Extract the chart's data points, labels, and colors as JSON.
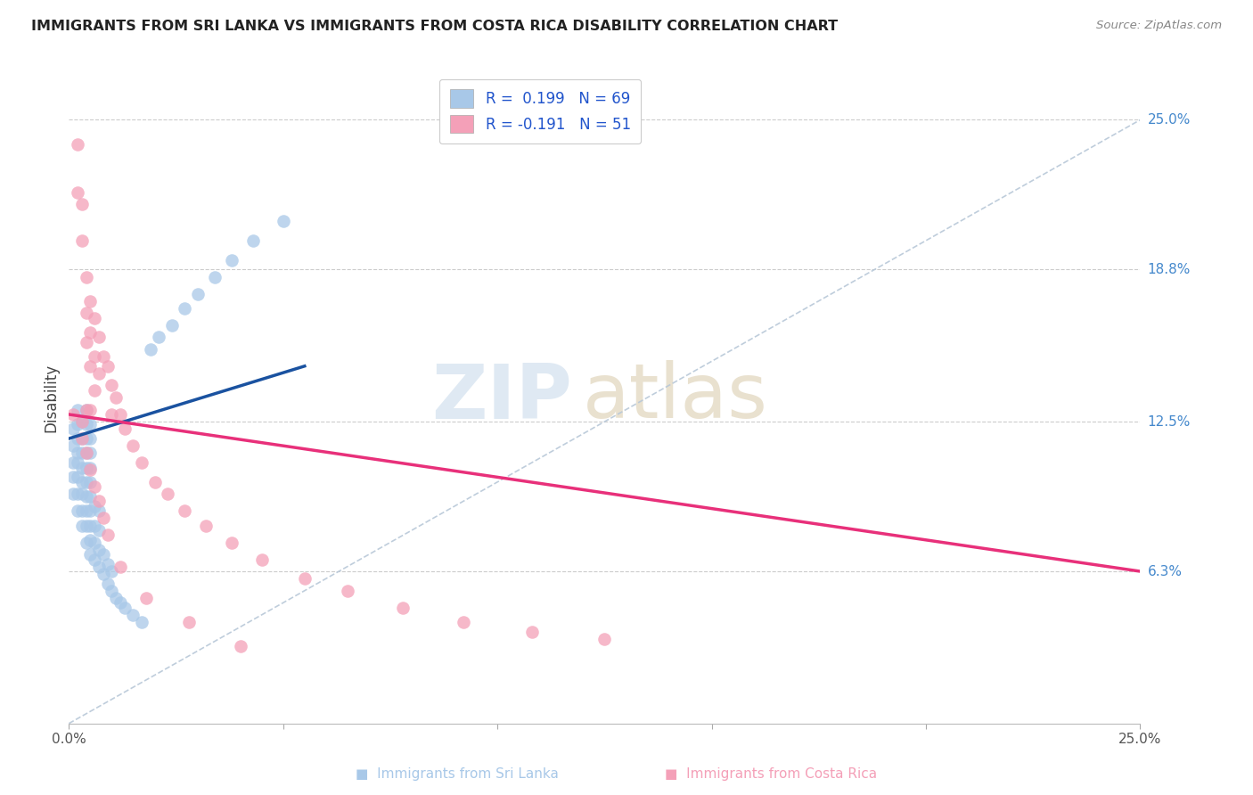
{
  "title": "IMMIGRANTS FROM SRI LANKA VS IMMIGRANTS FROM COSTA RICA DISABILITY CORRELATION CHART",
  "source": "Source: ZipAtlas.com",
  "ylabel": "Disability",
  "xlim": [
    0.0,
    0.25
  ],
  "ylim": [
    0.0,
    0.27
  ],
  "ytick_vals": [
    0.063,
    0.125,
    0.188,
    0.25
  ],
  "ytick_labels": [
    "6.3%",
    "12.5%",
    "18.8%",
    "25.0%"
  ],
  "xtick_vals": [
    0.0,
    0.05,
    0.1,
    0.15,
    0.2,
    0.25
  ],
  "xtick_labels": [
    "0.0%",
    "",
    "",
    "",
    "",
    "25.0%"
  ],
  "sri_lanka_color": "#a8c8e8",
  "costa_rica_color": "#f4a0b8",
  "sri_lanka_line_color": "#1a52a0",
  "costa_rica_line_color": "#e8307a",
  "trendline_color": "#b8c8d8",
  "legend_label_sl": "R =  0.199   N = 69",
  "legend_label_cr": "R = -0.191   N = 51",
  "bottom_label_sl": "Immigrants from Sri Lanka",
  "bottom_label_cr": "Immigrants from Costa Rica",
  "sl_x": [
    0.001,
    0.001,
    0.001,
    0.001,
    0.001,
    0.002,
    0.002,
    0.002,
    0.002,
    0.002,
    0.002,
    0.002,
    0.002,
    0.003,
    0.003,
    0.003,
    0.003,
    0.003,
    0.003,
    0.003,
    0.003,
    0.004,
    0.004,
    0.004,
    0.004,
    0.004,
    0.004,
    0.004,
    0.004,
    0.004,
    0.004,
    0.005,
    0.005,
    0.005,
    0.005,
    0.005,
    0.005,
    0.005,
    0.005,
    0.005,
    0.005,
    0.006,
    0.006,
    0.006,
    0.006,
    0.007,
    0.007,
    0.007,
    0.007,
    0.008,
    0.008,
    0.009,
    0.009,
    0.01,
    0.01,
    0.011,
    0.012,
    0.013,
    0.015,
    0.017,
    0.019,
    0.021,
    0.024,
    0.027,
    0.03,
    0.034,
    0.038,
    0.043,
    0.05
  ],
  "sl_y": [
    0.095,
    0.102,
    0.108,
    0.115,
    0.122,
    0.088,
    0.095,
    0.102,
    0.108,
    0.112,
    0.118,
    0.124,
    0.13,
    0.082,
    0.088,
    0.095,
    0.1,
    0.106,
    0.112,
    0.118,
    0.125,
    0.075,
    0.082,
    0.088,
    0.094,
    0.1,
    0.106,
    0.112,
    0.118,
    0.124,
    0.13,
    0.07,
    0.076,
    0.082,
    0.088,
    0.094,
    0.1,
    0.106,
    0.112,
    0.118,
    0.124,
    0.068,
    0.075,
    0.082,
    0.09,
    0.065,
    0.072,
    0.08,
    0.088,
    0.062,
    0.07,
    0.058,
    0.066,
    0.055,
    0.063,
    0.052,
    0.05,
    0.048,
    0.045,
    0.042,
    0.155,
    0.16,
    0.165,
    0.172,
    0.178,
    0.185,
    0.192,
    0.2,
    0.208
  ],
  "cr_x": [
    0.001,
    0.002,
    0.002,
    0.003,
    0.003,
    0.003,
    0.004,
    0.004,
    0.004,
    0.004,
    0.005,
    0.005,
    0.005,
    0.005,
    0.006,
    0.006,
    0.006,
    0.007,
    0.007,
    0.008,
    0.009,
    0.01,
    0.01,
    0.011,
    0.012,
    0.013,
    0.015,
    0.017,
    0.02,
    0.023,
    0.027,
    0.032,
    0.038,
    0.045,
    0.055,
    0.065,
    0.078,
    0.092,
    0.108,
    0.125,
    0.003,
    0.004,
    0.005,
    0.006,
    0.007,
    0.008,
    0.009,
    0.012,
    0.018,
    0.028,
    0.04
  ],
  "cr_y": [
    0.128,
    0.24,
    0.22,
    0.215,
    0.2,
    0.125,
    0.185,
    0.17,
    0.158,
    0.13,
    0.175,
    0.162,
    0.148,
    0.13,
    0.168,
    0.152,
    0.138,
    0.16,
    0.145,
    0.152,
    0.148,
    0.14,
    0.128,
    0.135,
    0.128,
    0.122,
    0.115,
    0.108,
    0.1,
    0.095,
    0.088,
    0.082,
    0.075,
    0.068,
    0.06,
    0.055,
    0.048,
    0.042,
    0.038,
    0.035,
    0.118,
    0.112,
    0.105,
    0.098,
    0.092,
    0.085,
    0.078,
    0.065,
    0.052,
    0.042,
    0.032
  ],
  "sl_line_x0": 0.0,
  "sl_line_x1": 0.055,
  "sl_line_y0": 0.118,
  "sl_line_y1": 0.148,
  "cr_line_x0": 0.0,
  "cr_line_x1": 0.25,
  "cr_line_y0": 0.128,
  "cr_line_y1": 0.063
}
